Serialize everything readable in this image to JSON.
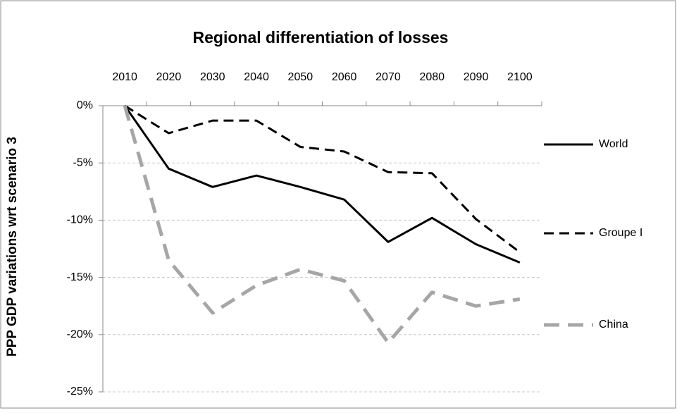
{
  "chart_data": {
    "type": "line",
    "title": "Regional differentiation of losses",
    "ylabel": "PPP GDP variations wrt scenario 3",
    "categories": [
      "2010",
      "2020",
      "2030",
      "2040",
      "2050",
      "2060",
      "2070",
      "2080",
      "2090",
      "2100"
    ],
    "series": [
      {
        "name": "World",
        "color": "#000000",
        "dash": "solid",
        "values": [
          0,
          -5.5,
          -7.1,
          -6.1,
          -7.1,
          -8.2,
          -11.9,
          -9.8,
          -12.1,
          -13.7
        ]
      },
      {
        "name": "Groupe I",
        "color": "#000000",
        "dash": "dashed",
        "values": [
          0,
          -2.4,
          -1.3,
          -1.3,
          -3.6,
          -4.0,
          -5.8,
          -5.9,
          -9.9,
          -12.8
        ]
      },
      {
        "name": "China",
        "color": "#a6a6a6",
        "dash": "dashed",
        "values": [
          0,
          -13.5,
          -18.1,
          -15.7,
          -14.3,
          -15.3,
          -20.7,
          -16.3,
          -17.5,
          -16.9
        ]
      }
    ],
    "ylim": [
      -25,
      0
    ],
    "yticks": [
      {
        "value": 0,
        "label": "0%"
      },
      {
        "value": -5,
        "label": "-5%"
      },
      {
        "value": -10,
        "label": "-10%"
      },
      {
        "value": -15,
        "label": "-15%"
      },
      {
        "value": -20,
        "label": "-20%"
      },
      {
        "value": -25,
        "label": "-25%"
      }
    ],
    "grid": true,
    "legend": "right"
  }
}
